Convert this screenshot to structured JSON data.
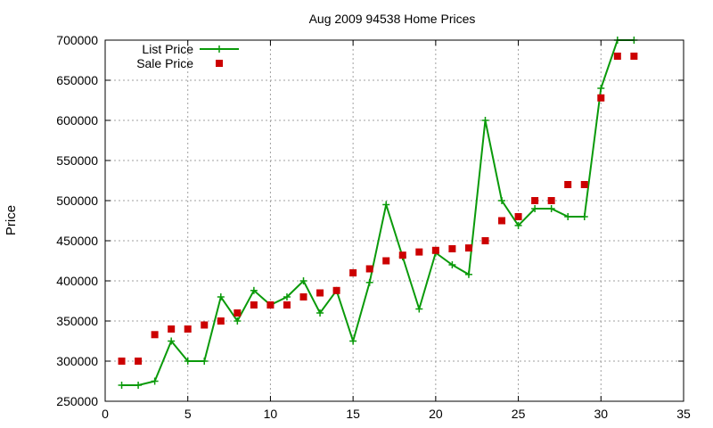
{
  "chart_data": {
    "type": "line",
    "title": "Aug 2009 94538 Home Prices",
    "xlabel": "",
    "ylabel": "Price",
    "xlim": [
      0,
      35
    ],
    "ylim": [
      250000,
      700000
    ],
    "x_ticks": [
      0,
      5,
      10,
      15,
      20,
      25,
      30,
      35
    ],
    "y_ticks": [
      250000,
      300000,
      350000,
      400000,
      450000,
      500000,
      550000,
      600000,
      650000,
      700000
    ],
    "grid": true,
    "legend_position": "top-left",
    "series": [
      {
        "name": "List Price",
        "style": "line-with-plus-markers",
        "color": "#0a9a0a",
        "x": [
          1,
          2,
          3,
          4,
          5,
          6,
          7,
          8,
          9,
          10,
          11,
          12,
          13,
          14,
          15,
          16,
          17,
          18,
          19,
          20,
          21,
          22,
          23,
          24,
          25,
          26,
          27,
          28,
          29,
          30,
          31,
          32
        ],
        "y": [
          270000,
          270000,
          275000,
          325000,
          300000,
          300000,
          380000,
          350000,
          388000,
          370000,
          380000,
          400000,
          360000,
          388000,
          325000,
          398000,
          495000,
          430000,
          365000,
          435000,
          420000,
          408000,
          600000,
          500000,
          469000,
          490000,
          490000,
          480000,
          480000,
          640000,
          700000,
          700000
        ]
      },
      {
        "name": "Sale Price",
        "style": "square-markers",
        "color": "#cc0000",
        "x": [
          1,
          2,
          3,
          4,
          5,
          6,
          7,
          8,
          9,
          10,
          11,
          12,
          13,
          14,
          15,
          16,
          17,
          18,
          19,
          20,
          21,
          22,
          23,
          24,
          25,
          26,
          27,
          28,
          29,
          30,
          31,
          32
        ],
        "y": [
          300000,
          300000,
          333000,
          340000,
          340000,
          345000,
          350000,
          360000,
          370000,
          370000,
          370000,
          380000,
          385000,
          388000,
          410000,
          415000,
          425000,
          432000,
          436000,
          438000,
          440000,
          441000,
          450000,
          475000,
          480000,
          500000,
          500000,
          520000,
          520000,
          628000,
          680000,
          680000
        ]
      }
    ]
  }
}
